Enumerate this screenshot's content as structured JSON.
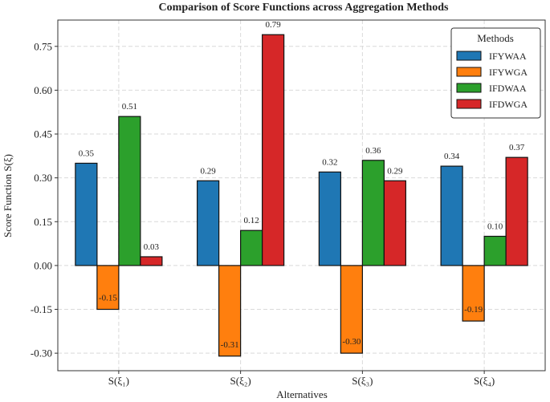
{
  "chart_data": {
    "type": "bar",
    "title": "Comparison of Score Functions across Aggregation Methods",
    "xlabel": "Alternatives",
    "ylabel": "Score Function  S(ξ)",
    "categories": [
      "S(ξ₁)",
      "S(ξ₂)",
      "S(ξ₃)",
      "S(ξ₄)"
    ],
    "series": [
      {
        "name": "IFYWAA",
        "color": "#1f77b4",
        "values": [
          0.35,
          0.29,
          0.32,
          0.34
        ],
        "labels": [
          "0.35",
          "0.29",
          "0.32",
          "0.34"
        ]
      },
      {
        "name": "IFYWGA",
        "color": "#ff7f0e",
        "values": [
          -0.15,
          -0.31,
          -0.3,
          -0.19
        ],
        "labels": [
          "-0.15",
          "-0.31",
          "-0.30",
          "-0.19"
        ]
      },
      {
        "name": "IFDWAA",
        "color": "#2ca02c",
        "values": [
          0.51,
          0.12,
          0.36,
          0.1
        ],
        "labels": [
          "0.51",
          "0.12",
          "0.36",
          "0.10"
        ]
      },
      {
        "name": "IFDWGA",
        "color": "#d62728",
        "values": [
          0.03,
          0.79,
          0.29,
          0.37
        ],
        "labels": [
          "0.03",
          "0.79",
          "0.29",
          "0.37"
        ]
      }
    ],
    "yticks": [
      -0.3,
      -0.15,
      0.0,
      0.15,
      0.3,
      0.45,
      0.6,
      0.75
    ],
    "ytick_labels": [
      "-0.30",
      "-0.15",
      "0.00",
      "0.15",
      "0.30",
      "0.45",
      "0.60",
      "0.75"
    ],
    "ylim": [
      -0.36,
      0.84
    ],
    "grid": true,
    "legend": {
      "title": "Methods",
      "position": "top-right"
    }
  }
}
